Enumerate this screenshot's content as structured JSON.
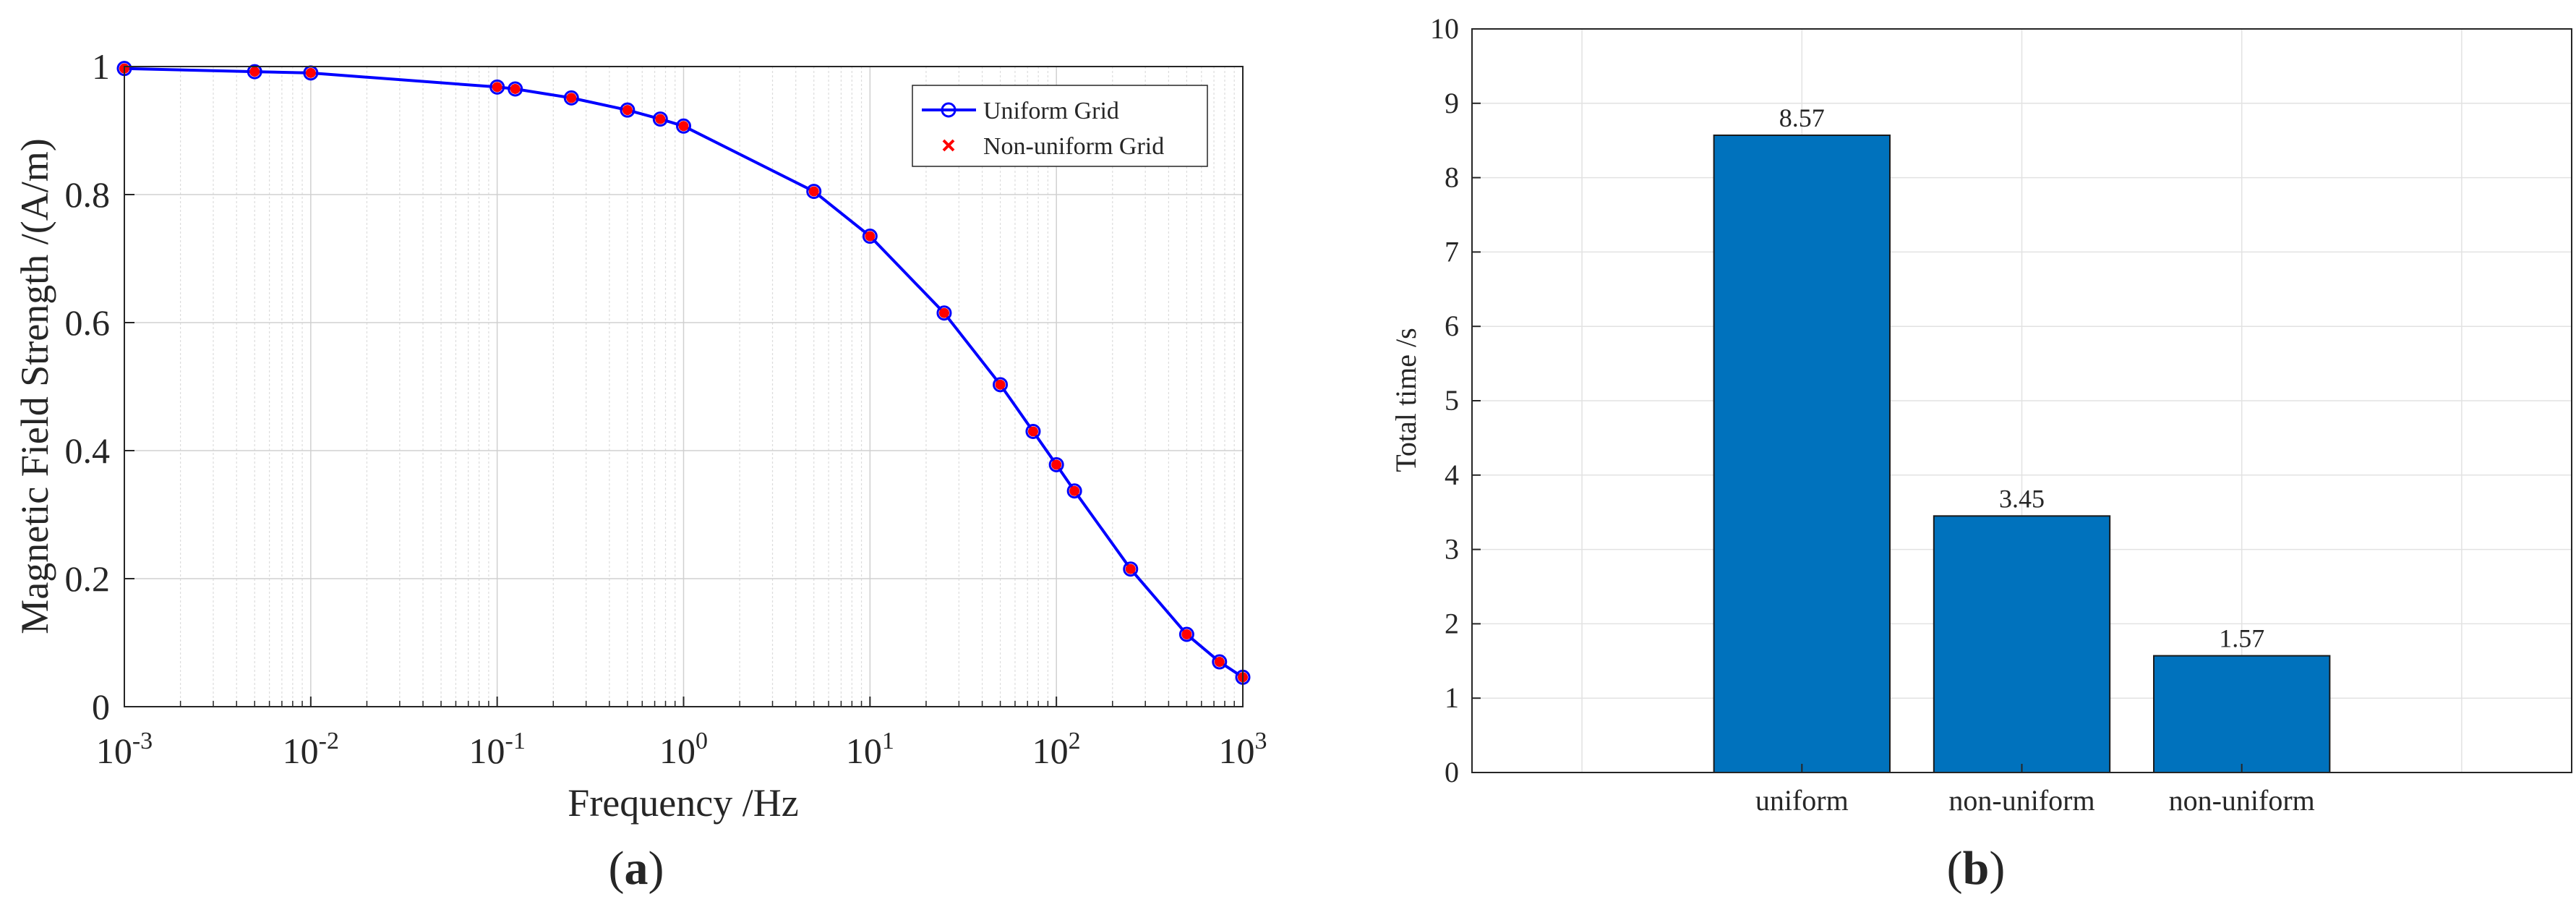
{
  "chart_data": [
    {
      "type": "line",
      "panel_label_open": "(",
      "panel_label_letter": "a",
      "panel_label_close": ")",
      "xlabel": "Frequency /Hz",
      "ylabel": "Magnetic Field Strength /(A/m)",
      "xscale": "log",
      "xlim": [
        0.001,
        1000
      ],
      "ylim": [
        0,
        1
      ],
      "x_ticks": [
        {
          "base": "10",
          "exp": "-3",
          "value": 0.001
        },
        {
          "base": "10",
          "exp": "-2",
          "value": 0.01
        },
        {
          "base": "10",
          "exp": "-1",
          "value": 0.1
        },
        {
          "base": "10",
          "exp": "0",
          "value": 1
        },
        {
          "base": "10",
          "exp": "1",
          "value": 10
        },
        {
          "base": "10",
          "exp": "2",
          "value": 100
        },
        {
          "base": "10",
          "exp": "3",
          "value": 1000
        }
      ],
      "y_ticks": [
        "0",
        "0.2",
        "0.4",
        "0.6",
        "0.8",
        "1"
      ],
      "grid": true,
      "legend_position": "top-right",
      "series": [
        {
          "name": "Uniform Grid",
          "color": "#0000ff",
          "marker": "circle",
          "x": [
            0.001,
            0.005,
            0.01,
            0.1,
            0.125,
            0.25,
            0.5,
            0.75,
            1,
            5,
            10,
            25,
            50,
            75,
            100,
            125,
            250,
            500,
            750,
            1000
          ],
          "y": [
            0.997,
            0.992,
            0.99,
            0.968,
            0.965,
            0.951,
            0.932,
            0.918,
            0.907,
            0.805,
            0.735,
            0.615,
            0.503,
            0.43,
            0.378,
            0.337,
            0.215,
            0.113,
            0.07,
            0.046
          ]
        },
        {
          "name": "Non-uniform Grid",
          "color": "#ff0000",
          "marker": "x",
          "x": [
            0.001,
            0.005,
            0.01,
            0.1,
            0.125,
            0.25,
            0.5,
            0.75,
            1,
            5,
            10,
            25,
            50,
            75,
            100,
            125,
            250,
            500,
            750,
            1000
          ],
          "y": [
            0.997,
            0.992,
            0.99,
            0.968,
            0.965,
            0.951,
            0.932,
            0.918,
            0.907,
            0.805,
            0.735,
            0.615,
            0.503,
            0.43,
            0.378,
            0.337,
            0.215,
            0.113,
            0.07,
            0.046
          ]
        }
      ]
    },
    {
      "type": "bar",
      "panel_label_open": "(",
      "panel_label_letter": "b",
      "panel_label_close": ")",
      "xlabel": "",
      "ylabel": "Total time /s",
      "categories": [
        "uniform",
        "non-uniform",
        "non-uniform"
      ],
      "values": [
        8.57,
        3.45,
        1.57
      ],
      "value_labels": [
        "8.57",
        "3.45",
        "1.57"
      ],
      "ylim": [
        0,
        10
      ],
      "y_ticks": [
        "0",
        "1",
        "2",
        "3",
        "4",
        "5",
        "6",
        "7",
        "8",
        "9",
        "10"
      ],
      "grid": true,
      "bar_color": "#0072bd"
    }
  ]
}
